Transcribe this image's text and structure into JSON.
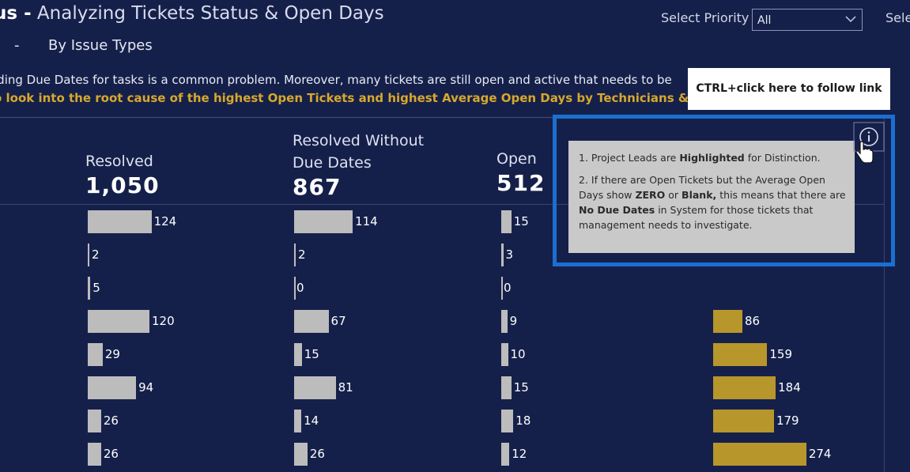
{
  "header": {
    "title_bold": "us -",
    "title_rest": " Analyzing Tickets Status & Open Days",
    "subtitle_dash": "-",
    "subtitle": "By Issue Types"
  },
  "description": {
    "line1": "iding Due Dates for tasks is a common problem. Moreover, many tickets are still open and active that needs to be",
    "line2": "o look into the root cause of the highest Open Tickets and highest Average Open Days by Technicians & by I"
  },
  "filters": {
    "priority_label": "Select Priority",
    "priority_value": "All",
    "next_label": "Sele"
  },
  "kpis": [
    {
      "label": "Resolved",
      "value": "1,050"
    },
    {
      "label_line1": "Resolved Without",
      "label_line2": "Due Dates",
      "value": "867"
    },
    {
      "label": "Open",
      "value": "512"
    }
  ],
  "columns": {
    "resolved": [
      124,
      2,
      5,
      120,
      29,
      94,
      26,
      26
    ],
    "resolved_without_due": [
      114,
      2,
      0,
      67,
      15,
      81,
      14,
      26
    ],
    "open": [
      15,
      3,
      0,
      9,
      10,
      15,
      18,
      12
    ],
    "avg_open_days": [
      86,
      159,
      184,
      179,
      274
    ]
  },
  "colors": {
    "background": "#15204a",
    "bar_gray": "#bcbcbc",
    "bar_gold": "#b7962c",
    "accent_text": "#d6a82d",
    "highlight_border": "#1a6fd1"
  },
  "link_tooltip": "CTRL+click here to follow link",
  "info_tooltip": {
    "p1_pre": "1. Project Leads are ",
    "p1_bold": "Highlighted",
    "p1_post": " for Distinction.",
    "p2_a": "2. If there are Open Tickets but the Average Open Days show ",
    "p2_b": "ZERO",
    "p2_c": " or ",
    "p2_d": "Blank,",
    "p2_e": " this means that there are ",
    "p2_f": "No Due Dates",
    "p2_g": " in System for those tickets that management needs to investigate."
  },
  "icons": {
    "info": "info-icon",
    "cursor": "hand-pointer-icon",
    "dropdown": "chevron-down-icon"
  }
}
